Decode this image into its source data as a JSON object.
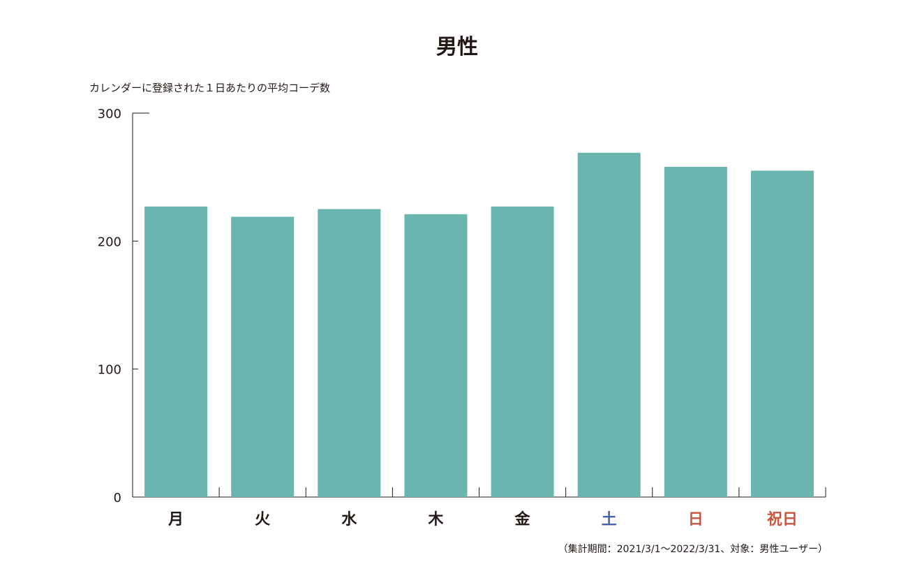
{
  "chart_data": {
    "type": "bar",
    "title": "男性",
    "ylabel": "カレンダーに登録された１日あたりの平均コーデ数",
    "xlabel": "",
    "categories": [
      "月",
      "火",
      "水",
      "木",
      "金",
      "土",
      "日",
      "祝日"
    ],
    "category_colors": [
      "#231815",
      "#231815",
      "#231815",
      "#231815",
      "#231815",
      "#4a63b0",
      "#c8553d",
      "#c8553d"
    ],
    "values": [
      227,
      219,
      225,
      221,
      227,
      269,
      258,
      255
    ],
    "ylim": [
      0,
      300
    ],
    "yticks": [
      0,
      100,
      200,
      300
    ],
    "bar_color": "#6ab5b0",
    "axis_color": "#231815",
    "grid": false,
    "footnote": "（集計期間：2021/3/1〜2022/3/31、対象：男性ユーザー）"
  }
}
